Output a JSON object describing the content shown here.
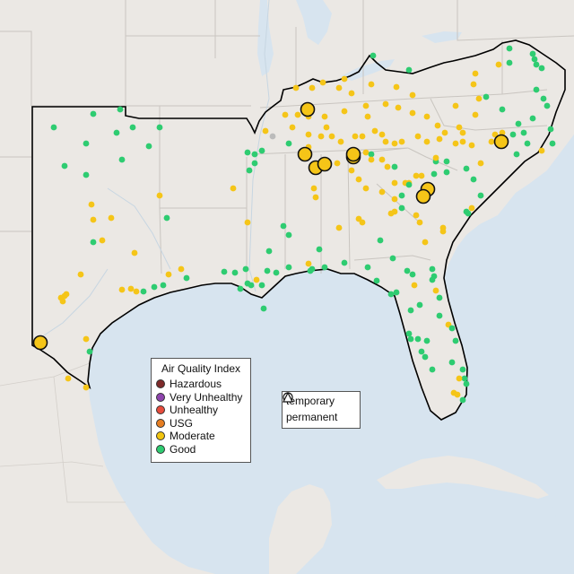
{
  "legend": {
    "title": "Air Quality Index",
    "categories": [
      {
        "label": "Hazardous",
        "color": "#7e2a2a"
      },
      {
        "label": "Very Unhealthy",
        "color": "#8e44ad"
      },
      {
        "label": "Unhealthy",
        "color": "#e74c3c"
      },
      {
        "label": "USG",
        "color": "#e67e22"
      },
      {
        "label": "Moderate",
        "color": "#f1c40f"
      },
      {
        "label": "Good",
        "color": "#2ecc71"
      }
    ]
  },
  "monitor_types": {
    "temporary": "temporary",
    "permanent": "permanent"
  },
  "colors": {
    "land": "#ebe8e4",
    "water": "#d6e4ef",
    "border": "#000000",
    "state_line": "#bdbab6",
    "moderate": "#f5c518",
    "good": "#2ecc71",
    "nodata": "#bbbbbb"
  }
}
